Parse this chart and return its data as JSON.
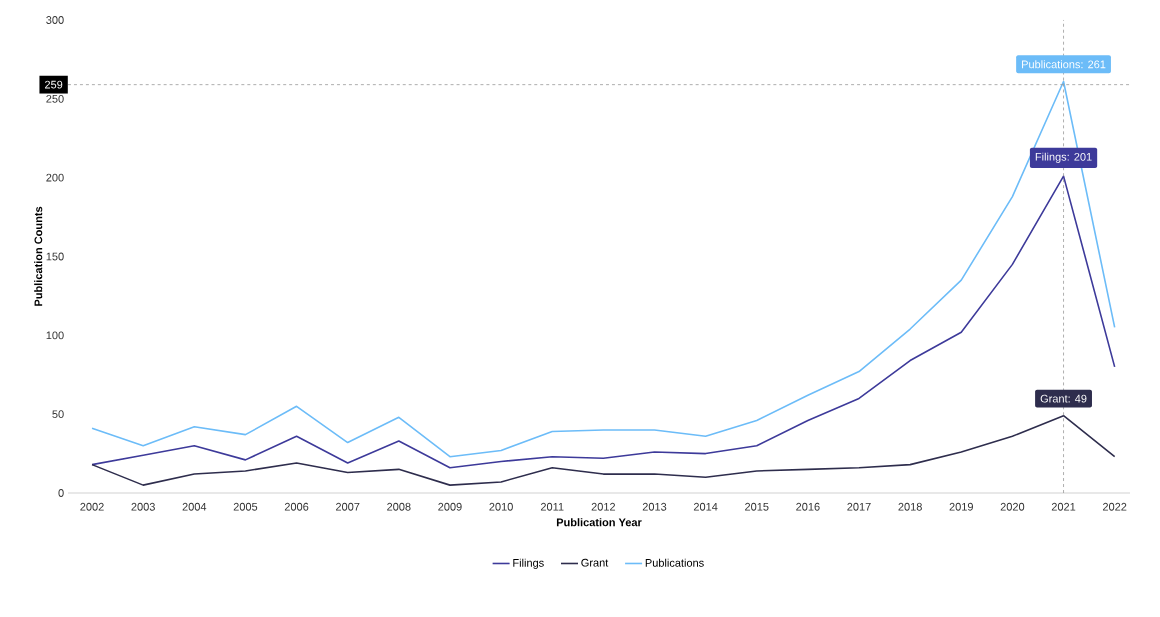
{
  "chart_data": {
    "type": "line",
    "xlabel": "Publication Year",
    "ylabel": "Publication Counts",
    "categories": [
      "2002",
      "2003",
      "2004",
      "2005",
      "2006",
      "2007",
      "2008",
      "2009",
      "2010",
      "2011",
      "2012",
      "2013",
      "2014",
      "2015",
      "2016",
      "2017",
      "2018",
      "2019",
      "2020",
      "2021",
      "2022"
    ],
    "series": [
      {
        "name": "Filings",
        "color": "#3d3a9a",
        "values": [
          18,
          24,
          30,
          21,
          36,
          19,
          33,
          16,
          20,
          23,
          22,
          26,
          25,
          30,
          46,
          60,
          84,
          102,
          145,
          201,
          80
        ]
      },
      {
        "name": "Grant",
        "color": "#2e2d4d",
        "values": [
          18,
          5,
          12,
          14,
          19,
          13,
          15,
          5,
          7,
          16,
          12,
          12,
          10,
          14,
          15,
          16,
          18,
          26,
          36,
          49,
          23
        ]
      },
      {
        "name": "Publications",
        "color": "#6cbcf8",
        "values": [
          41,
          30,
          42,
          37,
          55,
          32,
          48,
          23,
          27,
          39,
          40,
          40,
          36,
          46,
          62,
          77,
          104,
          135,
          188,
          261,
          105
        ]
      }
    ],
    "ylim": [
      0,
      300
    ],
    "yticks": [
      0,
      50,
      100,
      150,
      200,
      250,
      300
    ],
    "grid": false,
    "legend": "bottom",
    "marker": "none",
    "line_style": "solid",
    "ref_lines": [
      {
        "axis": "y",
        "value": 259,
        "label": "259",
        "color": "#999999",
        "line_style": "dashed"
      },
      {
        "axis": "x",
        "value": "2021",
        "label": null,
        "color": "#999999",
        "line_style": "dashed"
      }
    ],
    "annotations": [
      {
        "text": "Publications: 261",
        "x": "2021",
        "y": 261
      },
      {
        "text": "Filings: 201",
        "x": "2021",
        "y": 201
      },
      {
        "text": "Grant: 49",
        "x": "2021",
        "y": 49
      }
    ]
  }
}
